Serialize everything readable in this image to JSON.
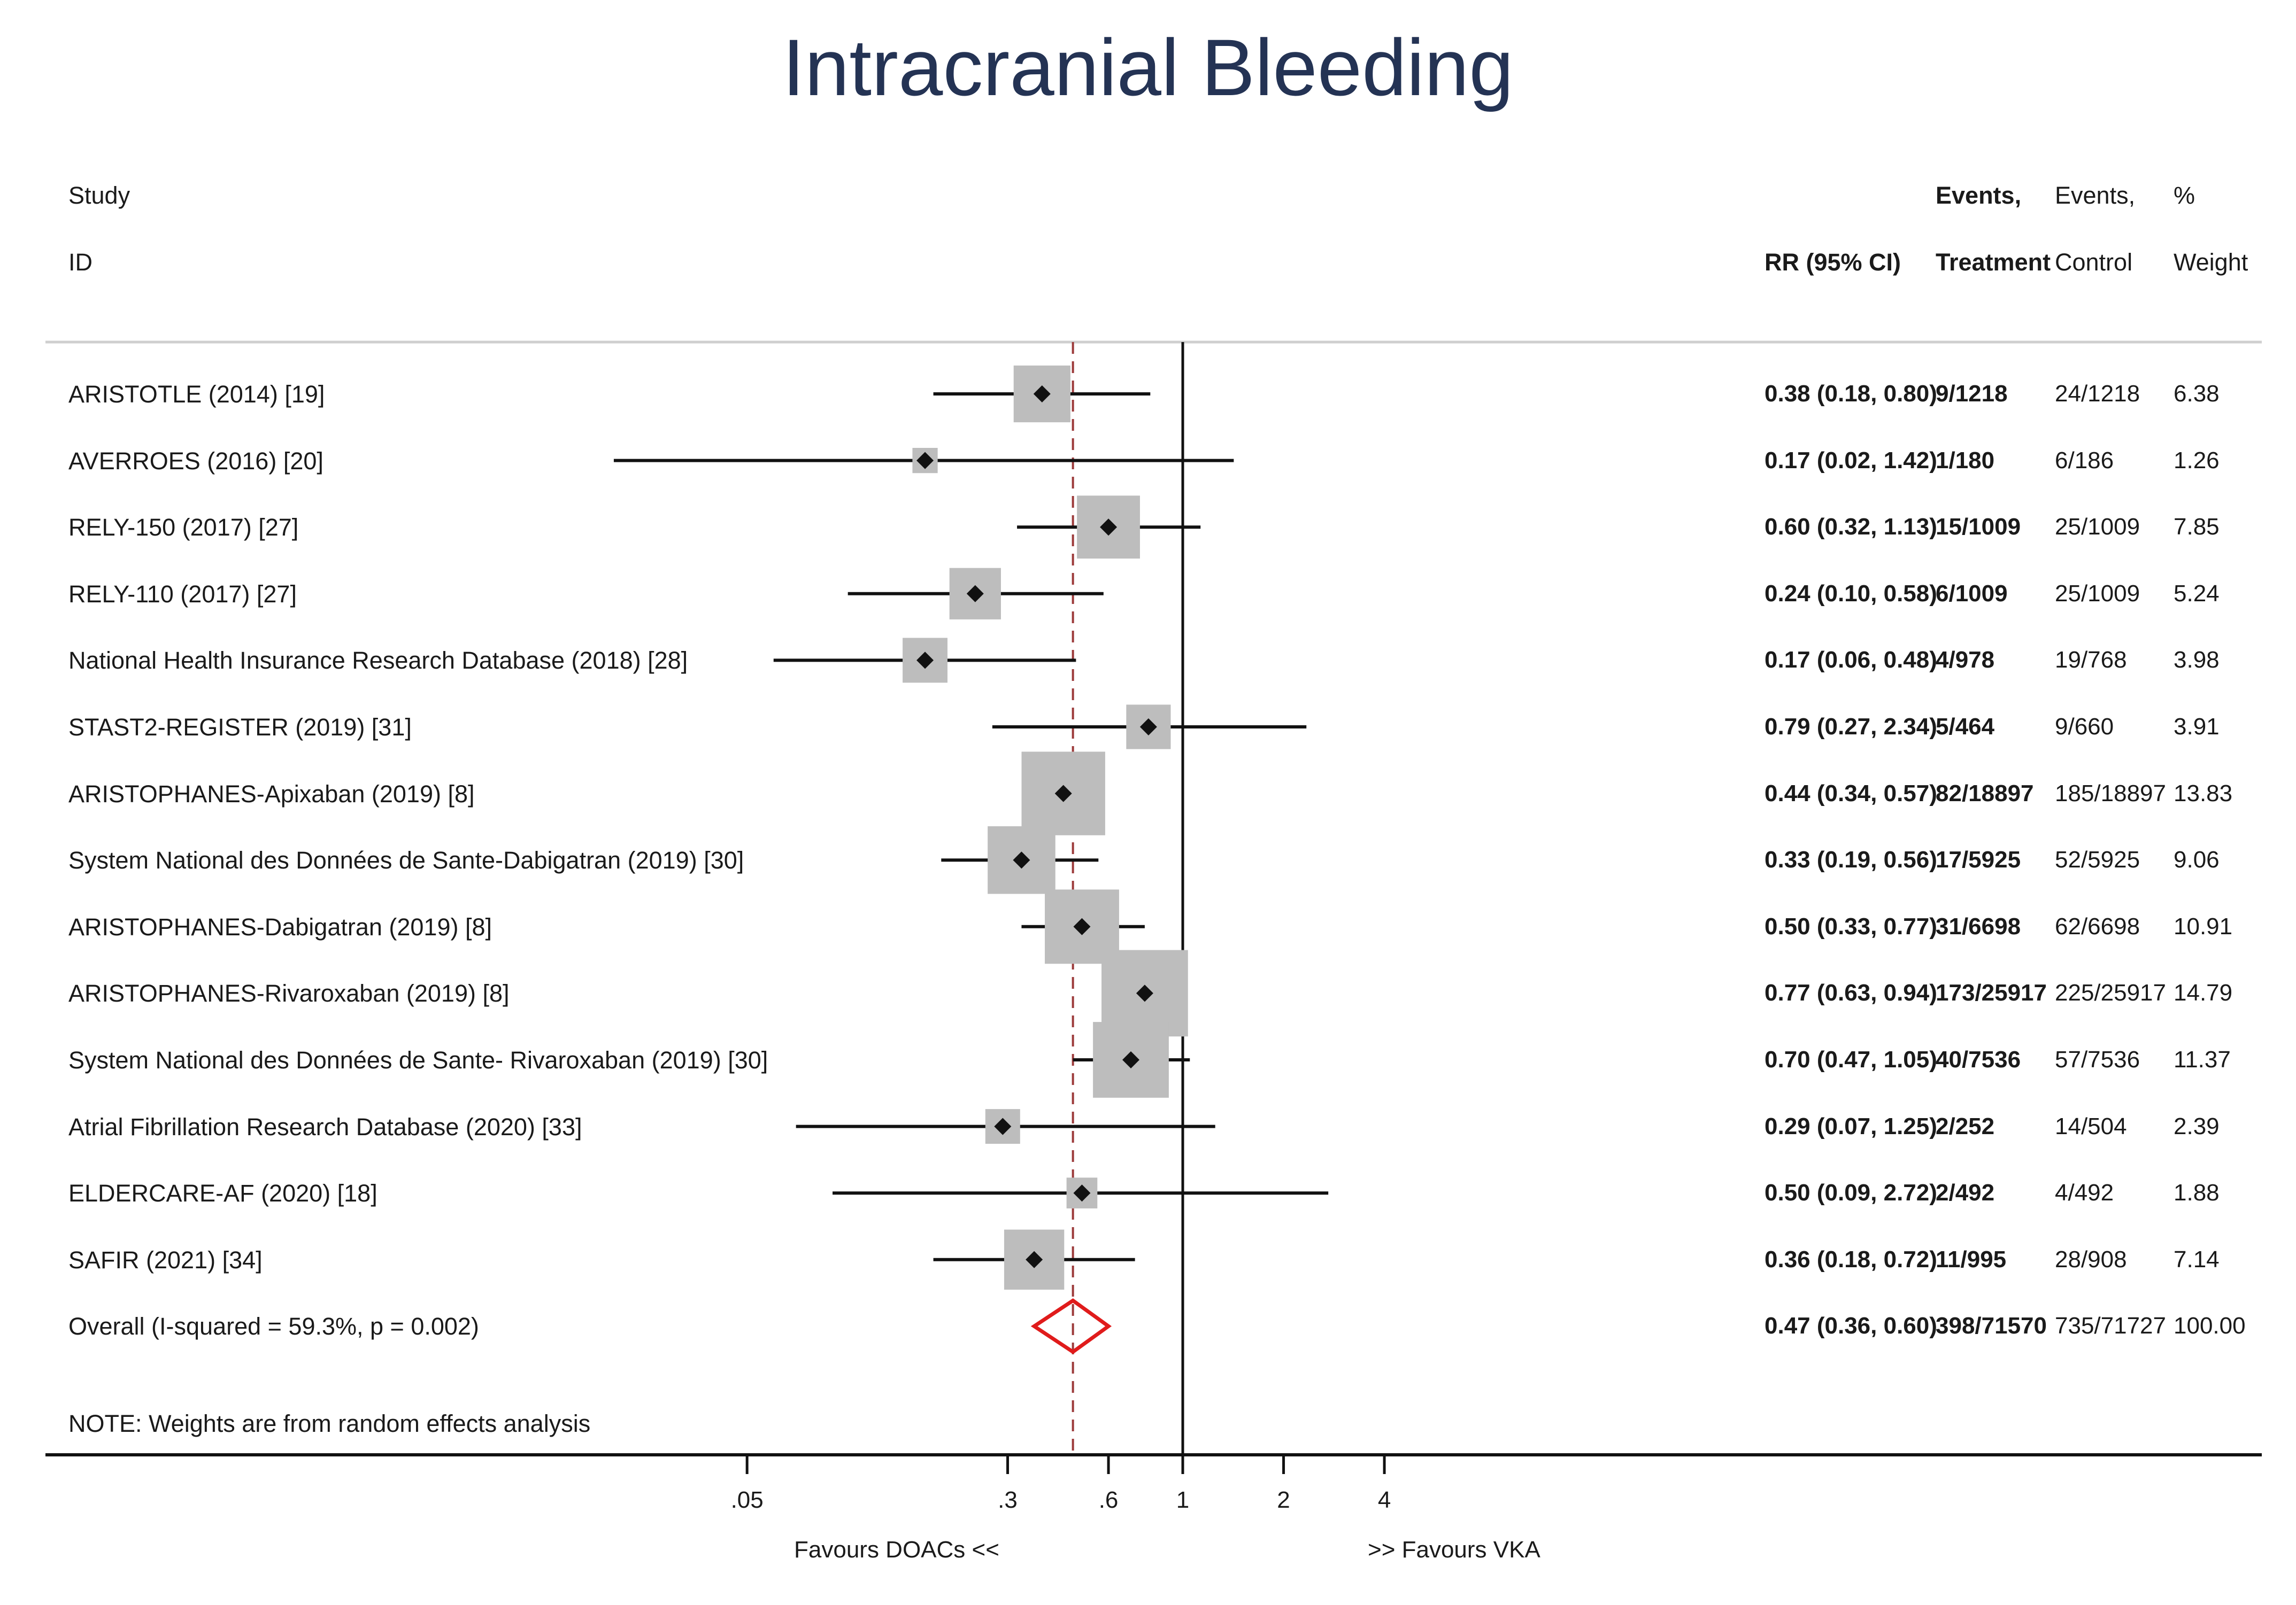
{
  "chart_data": {
    "type": "forest",
    "title": "Intracranial Bleeding",
    "headers": {
      "study": "Study",
      "id": "ID",
      "rr": "RR (95% CI)",
      "events_t_1": "Events,",
      "events_t_2": "Treatment",
      "events_c_1": "Events,",
      "events_c_2": "Control",
      "weight_1": "%",
      "weight_2": "Weight"
    },
    "studies": [
      {
        "id": "ARISTOTLE (2014) [19]",
        "rr": 0.38,
        "lo": 0.18,
        "hi": 0.8,
        "ci_text": "0.38 (0.18, 0.80)",
        "events_t": "9/1218",
        "events_c": "24/1218",
        "weight": 6.38,
        "weight_text": "6.38"
      },
      {
        "id": "AVERROES (2016) [20]",
        "rr": 0.17,
        "lo": 0.02,
        "hi": 1.42,
        "ci_text": "0.17 (0.02, 1.42)",
        "events_t": "1/180",
        "events_c": "6/186",
        "weight": 1.26,
        "weight_text": "1.26"
      },
      {
        "id": "RELY-150 (2017) [27]",
        "rr": 0.6,
        "lo": 0.32,
        "hi": 1.13,
        "ci_text": "0.60 (0.32, 1.13)",
        "events_t": "15/1009",
        "events_c": "25/1009",
        "weight": 7.85,
        "weight_text": "7.85"
      },
      {
        "id": "RELY-110 (2017) [27]",
        "rr": 0.24,
        "lo": 0.1,
        "hi": 0.58,
        "ci_text": "0.24 (0.10, 0.58)",
        "events_t": "6/1009",
        "events_c": "25/1009",
        "weight": 5.24,
        "weight_text": "5.24"
      },
      {
        "id": "National Health Insurance Research Database (2018) [28]",
        "rr": 0.17,
        "lo": 0.06,
        "hi": 0.48,
        "ci_text": "0.17 (0.06, 0.48)",
        "events_t": "4/978",
        "events_c": "19/768",
        "weight": 3.98,
        "weight_text": "3.98"
      },
      {
        "id": "STAST2-REGISTER (2019) [31]",
        "rr": 0.79,
        "lo": 0.27,
        "hi": 2.34,
        "ci_text": "0.79 (0.27, 2.34)",
        "events_t": "5/464",
        "events_c": "9/660",
        "weight": 3.91,
        "weight_text": "3.91"
      },
      {
        "id": "ARISTOPHANES-Apixaban (2019) [8]",
        "rr": 0.44,
        "lo": 0.34,
        "hi": 0.57,
        "ci_text": "0.44 (0.34, 0.57)",
        "events_t": "82/18897",
        "events_c": "185/18897",
        "weight": 13.83,
        "weight_text": "13.83"
      },
      {
        "id": "System National des Données de Sante-Dabigatran (2019) [30]",
        "rr": 0.33,
        "lo": 0.19,
        "hi": 0.56,
        "ci_text": "0.33 (0.19, 0.56)",
        "events_t": "17/5925",
        "events_c": "52/5925",
        "weight": 9.06,
        "weight_text": "9.06"
      },
      {
        "id": "ARISTOPHANES-Dabigatran (2019) [8]",
        "rr": 0.5,
        "lo": 0.33,
        "hi": 0.77,
        "ci_text": "0.50 (0.33, 0.77)",
        "events_t": "31/6698",
        "events_c": "62/6698",
        "weight": 10.91,
        "weight_text": "10.91"
      },
      {
        "id": "ARISTOPHANES-Rivaroxaban (2019) [8]",
        "rr": 0.77,
        "lo": 0.63,
        "hi": 0.94,
        "ci_text": "0.77 (0.63, 0.94)",
        "events_t": "173/25917",
        "events_c": "225/25917",
        "weight": 14.79,
        "weight_text": "14.79"
      },
      {
        "id": "System National des Données de Sante- Rivaroxaban (2019) [30]",
        "rr": 0.7,
        "lo": 0.47,
        "hi": 1.05,
        "ci_text": "0.70 (0.47, 1.05)",
        "events_t": "40/7536",
        "events_c": "57/7536",
        "weight": 11.37,
        "weight_text": "11.37"
      },
      {
        "id": "Atrial Fibrillation Research Database (2020) [33]",
        "rr": 0.29,
        "lo": 0.07,
        "hi": 1.25,
        "ci_text": "0.29 (0.07, 1.25)",
        "events_t": "2/252",
        "events_c": "14/504",
        "weight": 2.39,
        "weight_text": "2.39"
      },
      {
        "id": "ELDERCARE-AF (2020) [18]",
        "rr": 0.5,
        "lo": 0.09,
        "hi": 2.72,
        "ci_text": "0.50 (0.09, 2.72)",
        "events_t": "2/492",
        "events_c": "4/492",
        "weight": 1.88,
        "weight_text": "1.88"
      },
      {
        "id": "SAFIR (2021) [34]",
        "rr": 0.36,
        "lo": 0.18,
        "hi": 0.72,
        "ci_text": "0.36 (0.18, 0.72)",
        "events_t": "11/995",
        "events_c": "28/908",
        "weight": 7.14,
        "weight_text": "7.14"
      }
    ],
    "overall": {
      "label": "Overall  (I-squared = 59.3%, p = 0.002)",
      "rr": 0.47,
      "lo": 0.36,
      "hi": 0.6,
      "ci_text": "0.47 (0.36, 0.60)",
      "events_t": "398/71570",
      "events_c": "735/71727",
      "weight_text": "100.00"
    },
    "note": "NOTE: Weights are from random effects analysis",
    "x_scale": "log",
    "x_ticks": [
      {
        "value": 0.05,
        "label": ".05"
      },
      {
        "value": 0.3,
        "label": ".3"
      },
      {
        "value": 0.6,
        "label": ".6"
      },
      {
        "value": 1,
        "label": "1"
      },
      {
        "value": 2,
        "label": "2"
      },
      {
        "value": 4,
        "label": "4"
      }
    ],
    "xlabel_left": "Favours DOACs <<",
    "xlabel_right": ">> Favours VKA",
    "reference_line": 1,
    "colors": {
      "title": "#243354",
      "box": "#bdbdbd",
      "line": "#111111",
      "diamond": "#e01b1b",
      "dashed": "#9c3a3a",
      "rule": "#cfcfcf"
    }
  }
}
